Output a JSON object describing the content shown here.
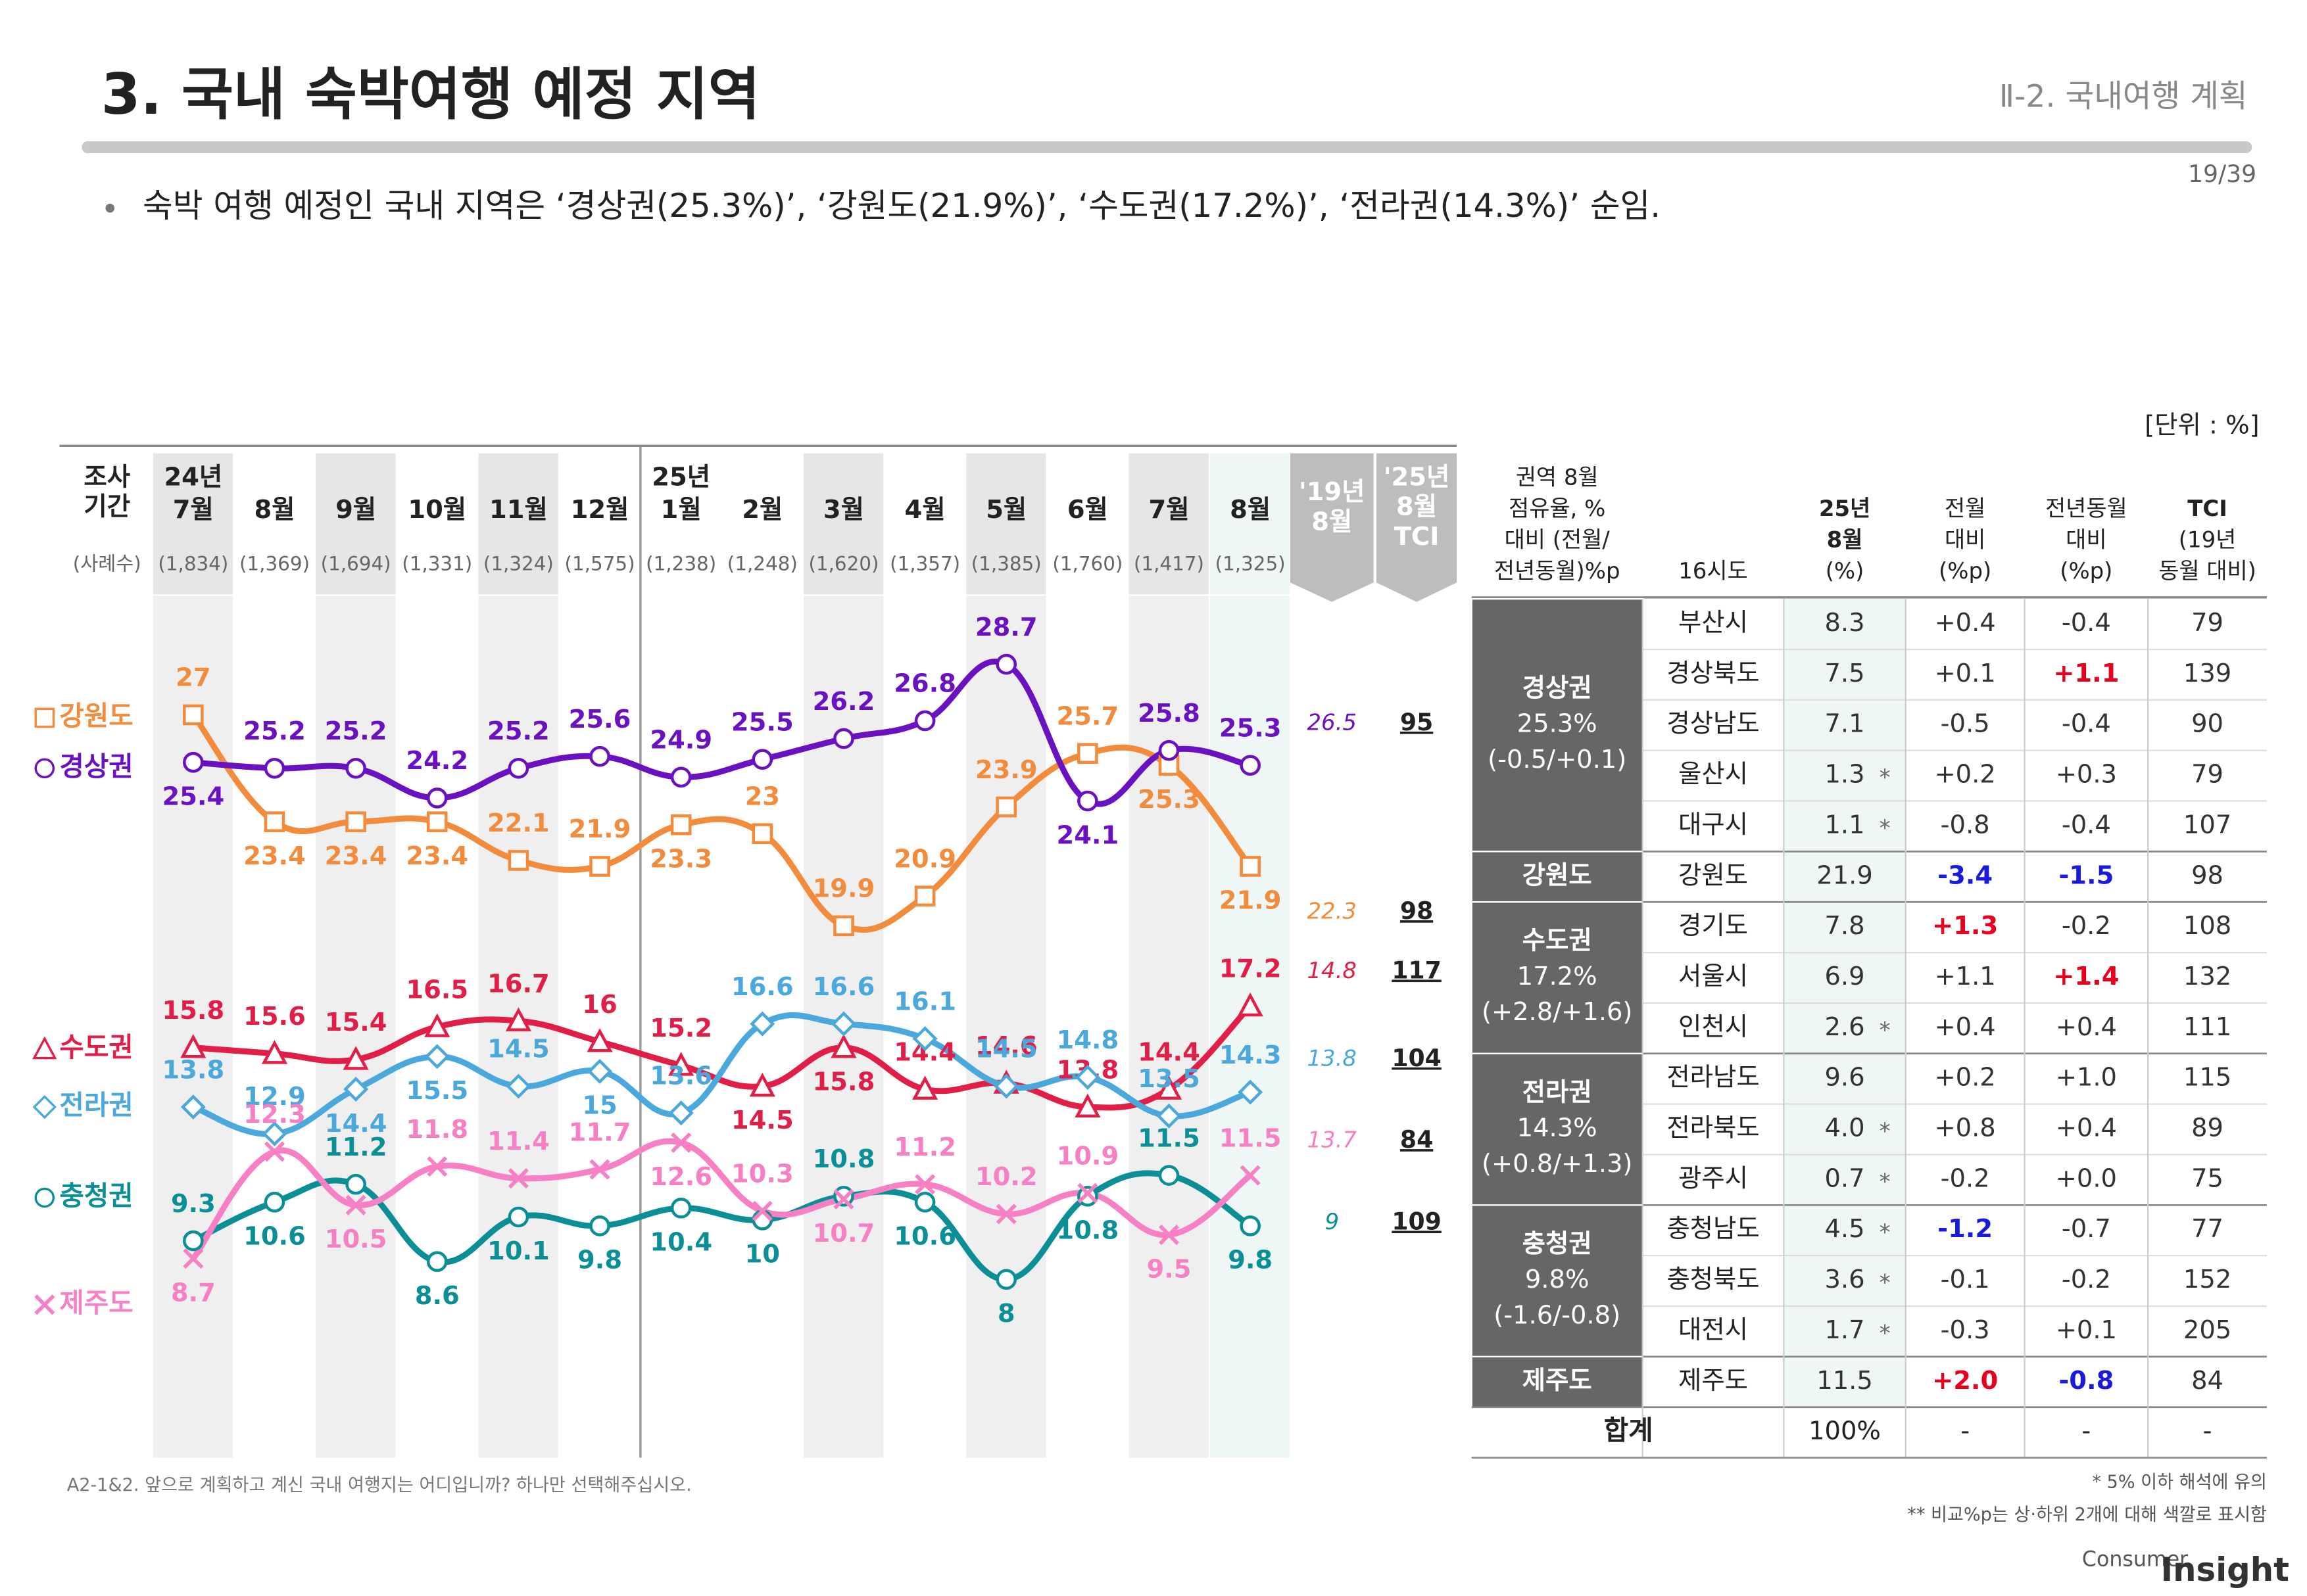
{
  "header": {
    "title": "3. 국내 숙박여행 예정 지역",
    "section": "Ⅱ-2. 국내여행 계획",
    "page": "19/39",
    "bullet": "숙박 여행 예정인 국내 지역은 ‘경상권(25.3%)’, ‘강원도(21.9%)’, ‘수도권(17.2%)’, ‘전라권(14.3%)’ 순임.",
    "unit": "[단위 : %]"
  },
  "chart_data": {
    "type": "line",
    "period_header": [
      "조사",
      "기간"
    ],
    "sample_header": "(사례수)",
    "category_years": [
      "24년",
      null,
      null,
      null,
      null,
      null,
      "25년",
      null,
      null,
      null,
      null,
      null,
      null,
      null
    ],
    "categories": [
      "7월",
      "8월",
      "9월",
      "10월",
      "11월",
      "12월",
      "1월",
      "2월",
      "3월",
      "4월",
      "5월",
      "6월",
      "7월",
      "8월"
    ],
    "samples": [
      "(1,834)",
      "(1,369)",
      "(1,694)",
      "(1,331)",
      "(1,324)",
      "(1,575)",
      "(1,238)",
      "(1,248)",
      "(1,620)",
      "(1,357)",
      "(1,385)",
      "(1,760)",
      "(1,417)",
      "(1,325)"
    ],
    "compare_header": [
      "'19년",
      "8월"
    ],
    "tci_header": [
      "'25년",
      "8월",
      "TCI"
    ],
    "ylim": [
      2,
      31
    ],
    "series": [
      {
        "name": "강원도",
        "color": "#f28c3c",
        "marker": "square",
        "values": [
          27.0,
          23.4,
          23.4,
          23.4,
          22.1,
          21.9,
          23.3,
          23.0,
          19.9,
          20.9,
          23.9,
          25.7,
          25.3,
          21.9
        ],
        "compare": 22.3,
        "tci": 98
      },
      {
        "name": "경상권",
        "color": "#6a12c2",
        "marker": "circle",
        "values": [
          25.4,
          25.2,
          25.2,
          24.2,
          25.2,
          25.6,
          24.9,
          25.5,
          26.2,
          26.8,
          28.7,
          24.1,
          25.8,
          25.3
        ],
        "compare": 26.5,
        "tci": 95
      },
      {
        "name": "수도권",
        "color": "#e01e48",
        "marker": "triangle",
        "values": [
          15.8,
          15.6,
          15.4,
          16.5,
          16.7,
          16.0,
          15.2,
          14.5,
          15.8,
          14.4,
          14.6,
          13.8,
          14.4,
          17.2
        ],
        "compare": 14.8,
        "tci": 117
      },
      {
        "name": "전라권",
        "color": "#4aa8dc",
        "marker": "diamond",
        "values": [
          13.8,
          12.9,
          14.4,
          15.5,
          14.5,
          15.0,
          13.6,
          16.6,
          16.6,
          16.1,
          14.5,
          14.8,
          13.5,
          14.3
        ],
        "compare": 13.8,
        "tci": 104
      },
      {
        "name": "충청권",
        "color": "#0b8f96",
        "marker": "circle",
        "values": [
          9.3,
          10.6,
          11.2,
          8.6,
          10.1,
          9.8,
          10.4,
          10.0,
          10.8,
          10.6,
          8.0,
          10.8,
          11.5,
          9.8
        ],
        "compare": 9.0,
        "tci": 109
      },
      {
        "name": "제주도",
        "color": "#f77fc4",
        "marker": "cross",
        "values": [
          8.7,
          12.3,
          10.5,
          11.8,
          11.4,
          11.7,
          12.6,
          10.3,
          10.7,
          11.2,
          10.2,
          10.9,
          9.5,
          11.5
        ],
        "compare": 13.7,
        "tci": 84
      }
    ]
  },
  "table": {
    "headers": [
      [
        "권역 8월",
        "점유율, %",
        "대비 (전월/",
        "전년동월)%p"
      ],
      [
        "16시도"
      ],
      [
        "25년",
        "8월",
        "(%)"
      ],
      [
        "전월",
        "대비",
        "(%p)"
      ],
      [
        "전년동월",
        "대비",
        "(%p)"
      ],
      [
        "TCI",
        "(19년",
        "동월 대비)"
      ]
    ],
    "groups": [
      {
        "label": [
          "경상권",
          "25.3%",
          "(-0.5/+0.1)"
        ],
        "rows": [
          {
            "name": "부산시",
            "share": "8.3",
            "mom": "+0.4",
            "yoy": "-0.4",
            "tci": "79"
          },
          {
            "name": "경상북도",
            "share": "7.5",
            "mom": "+0.1",
            "yoy": "+1.1",
            "tci": "139",
            "yoy_color": "#e8001c"
          },
          {
            "name": "경상남도",
            "share": "7.1",
            "mom": "-0.5",
            "yoy": "-0.4",
            "tci": "90"
          },
          {
            "name": "울산시",
            "share": "1.3",
            "flag": "*",
            "mom": "+0.2",
            "yoy": "+0.3",
            "tci": "79"
          },
          {
            "name": "대구시",
            "share": "1.1",
            "flag": "*",
            "mom": "-0.8",
            "yoy": "-0.4",
            "tci": "107"
          }
        ]
      },
      {
        "label": [
          "강원도"
        ],
        "rows": [
          {
            "name": "강원도",
            "share": "21.9",
            "mom": "-3.4",
            "yoy": "-1.5",
            "tci": "98",
            "mom_color": "#1a1adc",
            "yoy_color": "#1a1adc"
          }
        ]
      },
      {
        "label": [
          "수도권",
          "17.2%",
          "(+2.8/+1.6)"
        ],
        "rows": [
          {
            "name": "경기도",
            "share": "7.8",
            "mom": "+1.3",
            "yoy": "-0.2",
            "tci": "108",
            "mom_color": "#e8001c"
          },
          {
            "name": "서울시",
            "share": "6.9",
            "mom": "+1.1",
            "yoy": "+1.4",
            "tci": "132",
            "yoy_color": "#e8001c"
          },
          {
            "name": "인천시",
            "share": "2.6",
            "flag": "*",
            "mom": "+0.4",
            "yoy": "+0.4",
            "tci": "111"
          }
        ]
      },
      {
        "label": [
          "전라권",
          "14.3%",
          "(+0.8/+1.3)"
        ],
        "rows": [
          {
            "name": "전라남도",
            "share": "9.6",
            "mom": "+0.2",
            "yoy": "+1.0",
            "tci": "115"
          },
          {
            "name": "전라북도",
            "share": "4.0",
            "flag": "*",
            "mom": "+0.8",
            "yoy": "+0.4",
            "tci": "89"
          },
          {
            "name": "광주시",
            "share": "0.7",
            "flag": "*",
            "mom": "-0.2",
            "yoy": "+0.0",
            "tci": "75"
          }
        ]
      },
      {
        "label": [
          "충청권",
          "9.8%",
          "(-1.6/-0.8)"
        ],
        "rows": [
          {
            "name": "충청남도",
            "share": "4.5",
            "flag": "*",
            "mom": "-1.2",
            "yoy": "-0.7",
            "tci": "77",
            "mom_color": "#1a1adc"
          },
          {
            "name": "충청북도",
            "share": "3.6",
            "flag": "*",
            "mom": "-0.1",
            "yoy": "-0.2",
            "tci": "152"
          },
          {
            "name": "대전시",
            "share": "1.7",
            "flag": "*",
            "mom": "-0.3",
            "yoy": "+0.1",
            "tci": "205"
          }
        ]
      },
      {
        "label": [
          "제주도"
        ],
        "rows": [
          {
            "name": "제주도",
            "share": "11.5",
            "mom": "+2.0",
            "yoy": "-0.8",
            "tci": "84",
            "mom_color": "#e8001c",
            "yoy_color": "#1a1adc"
          }
        ]
      }
    ],
    "total": {
      "name": "합계",
      "share": "100%",
      "mom": "-",
      "yoy": "-",
      "tci": "-"
    }
  },
  "footer": {
    "question": "A2-1&2. 앞으로 계획하고 계신 국내 여행지는 어디입니까? 하나만 선택해주십시오.",
    "notes": [
      "* 5% 이하 해석에 유의",
      "** 비교%p는 상·하위 2개에 대해 색깔로 표시함"
    ],
    "logo": [
      "Consumer",
      "Insight"
    ]
  }
}
